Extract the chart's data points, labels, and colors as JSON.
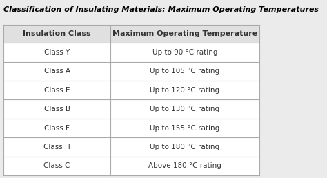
{
  "title": "Classification of Insulating Materials: Maximum Operating Temperatures",
  "col1_header": "Insulation Class",
  "col2_header": "Maximum Operating Temperature",
  "rows": [
    [
      "Class Y",
      "Up to 90 °C rating"
    ],
    [
      "Class A",
      "Up to 105 °C rating"
    ],
    [
      "Class E",
      "Up to 120 °C rating"
    ],
    [
      "Class B",
      "Up to 130 °C rating"
    ],
    [
      "Class F",
      "Up to 155 °C rating"
    ],
    [
      "Class H",
      "Up to 180 °C rating"
    ],
    [
      "Class C",
      "Above 180 °C rating"
    ]
  ],
  "bg_color": "#ebebeb",
  "table_bg": "#ffffff",
  "header_bg": "#e0e0e0",
  "line_color": "#aaaaaa",
  "title_color": "#000000",
  "text_color": "#333333",
  "title_fontsize": 8.0,
  "header_fontsize": 8.0,
  "cell_fontsize": 7.5,
  "col_split": 0.42
}
